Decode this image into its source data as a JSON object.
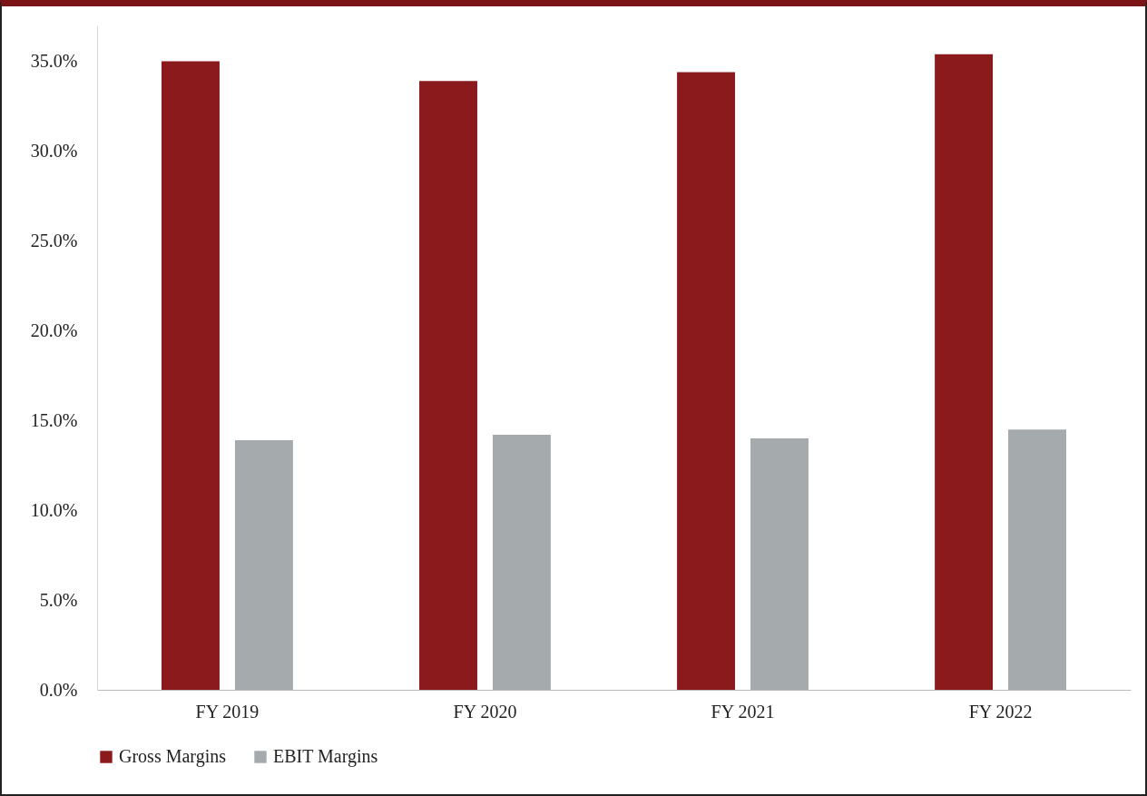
{
  "chart_data": {
    "type": "bar",
    "categories": [
      "FY 2019",
      "FY 2020",
      "FY 2021",
      "FY 2022"
    ],
    "series": [
      {
        "name": "Gross Margins",
        "color": "#8b1a1c",
        "values": [
          35.0,
          33.9,
          34.4,
          35.4
        ]
      },
      {
        "name": "EBIT Margins",
        "color": "#a5abad",
        "values": [
          13.9,
          14.2,
          14.0,
          14.5
        ]
      }
    ],
    "ylim": [
      0,
      37
    ],
    "yticks": [
      {
        "value": 0,
        "label": "0.0%"
      },
      {
        "value": 5,
        "label": "5.0%"
      },
      {
        "value": 10,
        "label": "10.0%"
      },
      {
        "value": 15,
        "label": "15.0%"
      },
      {
        "value": 20,
        "label": "20.0%"
      },
      {
        "value": 25,
        "label": "25.0%"
      },
      {
        "value": 30,
        "label": "30.0%"
      },
      {
        "value": 35,
        "label": "35.0%"
      }
    ],
    "grid": false,
    "legend": "bottom"
  }
}
